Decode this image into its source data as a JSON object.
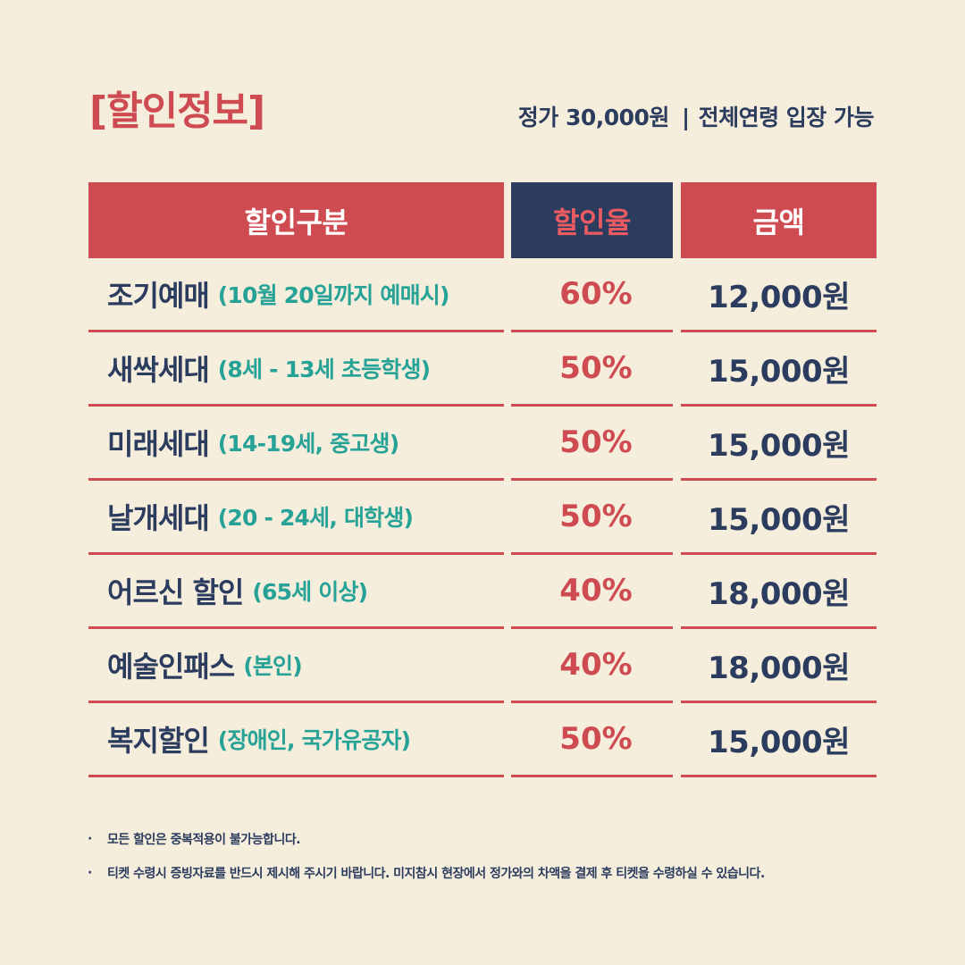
{
  "title": "[할인정보]",
  "price_info": {
    "price": "정가 30,000원",
    "separator": "|",
    "age": "전체연령 입장 가능"
  },
  "table": {
    "headers": [
      "할인구분",
      "할인율",
      "금액"
    ],
    "rows": [
      {
        "name": "조기예매",
        "note": "(10월 20일까지 예매시)",
        "rate": "60%",
        "amount": "12,000원"
      },
      {
        "name": "새싹세대",
        "note": "(8세 - 13세 초등학생)",
        "rate": "50%",
        "amount": "15,000원"
      },
      {
        "name": "미래세대",
        "note": "(14-19세, 중고생)",
        "rate": "50%",
        "amount": "15,000원"
      },
      {
        "name": "날개세대",
        "note": "(20 - 24세, 대학생)",
        "rate": "50%",
        "amount": "15,000원"
      },
      {
        "name": "어르신 할인",
        "note": "(65세 이상)",
        "rate": "40%",
        "amount": "18,000원"
      },
      {
        "name": "예술인패스",
        "note": "(본인)",
        "rate": "40%",
        "amount": "18,000원"
      },
      {
        "name": "복지할인",
        "note": "(장애인, 국가유공자)",
        "rate": "50%",
        "amount": "15,000원"
      }
    ]
  },
  "notes": [
    "모든 할인은 중복적용이 불가능합니다.",
    "티켓 수령시 증빙자료를 반드시 제시해 주시기 바랍니다. 미지참시 현장에서 정가와의 차액을 결제 후 티켓을 수령하실 수 있습니다."
  ],
  "bullet": "·",
  "colors": {
    "background": "#f6eedd",
    "accent_red": "#cf4b52",
    "navy": "#2b3c5e",
    "teal": "#26a296"
  }
}
